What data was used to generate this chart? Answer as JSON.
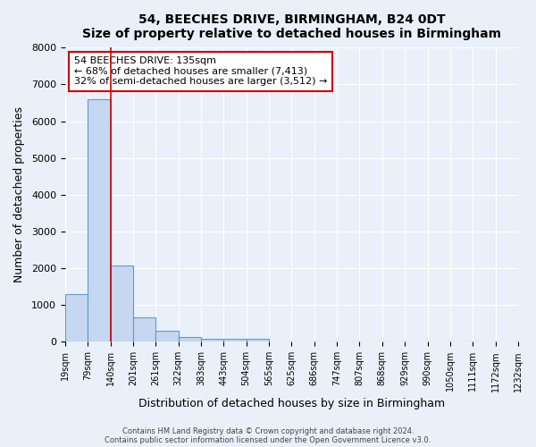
{
  "title": "54, BEECHES DRIVE, BIRMINGHAM, B24 0DT",
  "subtitle": "Size of property relative to detached houses in Birmingham",
  "xlabel": "Distribution of detached houses by size in Birmingham",
  "ylabel": "Number of detached properties",
  "bin_labels": [
    "19sqm",
    "79sqm",
    "140sqm",
    "201sqm",
    "261sqm",
    "322sqm",
    "383sqm",
    "443sqm",
    "504sqm",
    "565sqm",
    "625sqm",
    "686sqm",
    "747sqm",
    "807sqm",
    "868sqm",
    "929sqm",
    "990sqm",
    "1050sqm",
    "1111sqm",
    "1172sqm",
    "1232sqm"
  ],
  "bar_values": [
    1300,
    6600,
    2080,
    660,
    300,
    130,
    90,
    80,
    80,
    0,
    0,
    0,
    0,
    0,
    0,
    0,
    0,
    0,
    0,
    0
  ],
  "bar_color": "#c5d8f0",
  "bar_edge_color": "#5b9bd5",
  "property_line_x": 2.0,
  "property_line_color": "#cc0000",
  "ylim": [
    0,
    8000
  ],
  "yticks": [
    0,
    1000,
    2000,
    3000,
    4000,
    5000,
    6000,
    7000,
    8000
  ],
  "annotation_title": "54 BEECHES DRIVE: 135sqm",
  "annotation_line1": "← 68% of detached houses are smaller (7,413)",
  "annotation_line2": "32% of semi-detached houses are larger (3,512) →",
  "annotation_box_color": "#ffffff",
  "annotation_box_edge": "#cc0000",
  "footer1": "Contains HM Land Registry data © Crown copyright and database right 2024.",
  "footer2": "Contains public sector information licensed under the Open Government Licence v3.0.",
  "bg_color": "#eaf0f9",
  "plot_bg_color": "#eaf0f9"
}
